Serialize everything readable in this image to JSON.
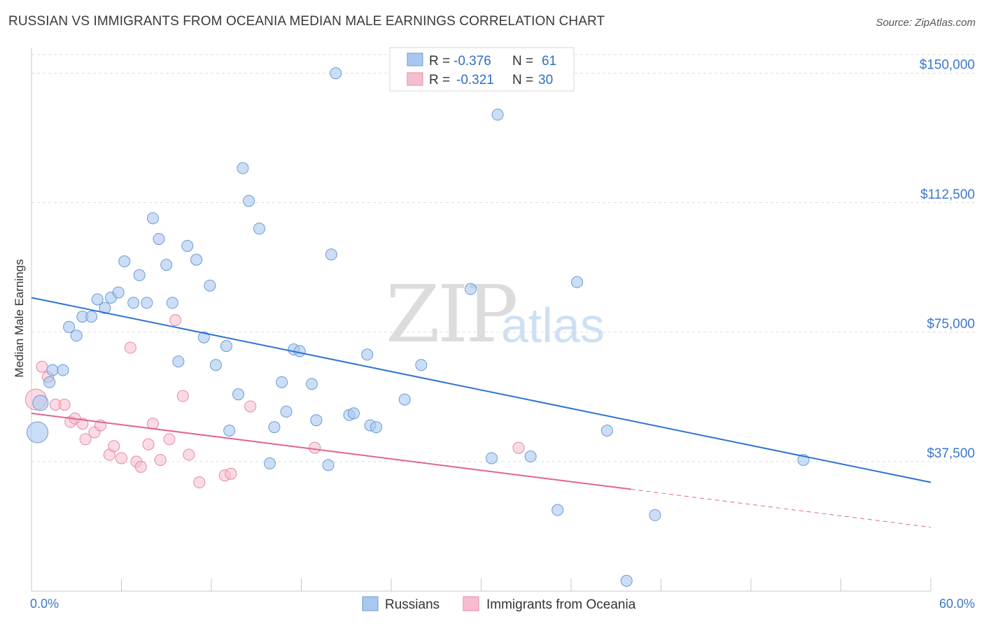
{
  "header": {
    "title": "RUSSIAN VS IMMIGRANTS FROM OCEANIA MEDIAN MALE EARNINGS CORRELATION CHART",
    "source": "Source: ZipAtlas.com"
  },
  "watermark": {
    "zip": "ZIP",
    "atlas": "atlas"
  },
  "colors": {
    "blue_fill": "#a9c8ef",
    "blue_stroke": "#6c9ad6",
    "blue_line": "#2e72d2",
    "pink_fill": "#f6bdd0",
    "pink_stroke": "#e8889f",
    "pink_line": "#e0658f",
    "accent_text": "#3b78c9",
    "grid": "#d8dce3"
  },
  "legend": {
    "rows": [
      {
        "r_label": "R =",
        "r_value": "-0.376",
        "n_label": "N =",
        "n_value": "61"
      },
      {
        "r_label": "R =",
        "r_value": "-0.321",
        "n_label": "N =",
        "n_value": "30"
      }
    ]
  },
  "chart_data": {
    "type": "scatter",
    "title": "RUSSIAN VS IMMIGRANTS FROM OCEANIA MEDIAN MALE EARNINGS CORRELATION CHART",
    "xlabel": "",
    "ylabel": "Median Male Earnings",
    "xlim": [
      0,
      60
    ],
    "ylim": [
      0,
      155000
    ],
    "x_tick_labels": [
      "0.0%",
      "60.0%"
    ],
    "y_ticks": [
      37500,
      75000,
      112500,
      150000
    ],
    "y_tick_labels": [
      "$37,500",
      "$75,000",
      "$112,500",
      "$150,000"
    ],
    "grid": true,
    "legend_position": "top-center",
    "series": [
      {
        "name": "Russians",
        "r": -0.376,
        "n": 61,
        "trend": {
          "x": [
            0,
            60
          ],
          "y": [
            85000,
            31500
          ]
        },
        "points": [
          [
            0.4,
            46000
          ],
          [
            0.6,
            54500
          ],
          [
            1.2,
            60500
          ],
          [
            1.4,
            64000
          ],
          [
            2.1,
            64000
          ],
          [
            2.5,
            76500
          ],
          [
            3.0,
            74000
          ],
          [
            3.4,
            79500
          ],
          [
            4.0,
            79500
          ],
          [
            4.4,
            84500
          ],
          [
            4.9,
            82000
          ],
          [
            5.3,
            85000
          ],
          [
            5.8,
            86500
          ],
          [
            6.2,
            95500
          ],
          [
            6.8,
            83500
          ],
          [
            7.2,
            91500
          ],
          [
            7.7,
            83500
          ],
          [
            8.1,
            108000
          ],
          [
            8.5,
            102000
          ],
          [
            9.0,
            94500
          ],
          [
            9.4,
            83500
          ],
          [
            9.8,
            66500
          ],
          [
            10.4,
            100000
          ],
          [
            11.0,
            96000
          ],
          [
            11.5,
            73500
          ],
          [
            11.9,
            88500
          ],
          [
            12.3,
            65500
          ],
          [
            13.2,
            46500
          ],
          [
            13.0,
            71000
          ],
          [
            13.8,
            57000
          ],
          [
            14.1,
            122500
          ],
          [
            14.5,
            113000
          ],
          [
            15.2,
            105000
          ],
          [
            15.9,
            37000
          ],
          [
            16.2,
            47500
          ],
          [
            16.7,
            60500
          ],
          [
            17.0,
            52000
          ],
          [
            17.5,
            70000
          ],
          [
            17.9,
            69500
          ],
          [
            18.7,
            60000
          ],
          [
            19.0,
            49500
          ],
          [
            19.8,
            36500
          ],
          [
            20.0,
            97500
          ],
          [
            20.3,
            150000
          ],
          [
            21.2,
            51000
          ],
          [
            21.5,
            51500
          ],
          [
            22.4,
            68500
          ],
          [
            22.6,
            48000
          ],
          [
            23.0,
            47500
          ],
          [
            24.9,
            55500
          ],
          [
            26.0,
            65500
          ],
          [
            29.3,
            87500
          ],
          [
            30.7,
            38500
          ],
          [
            31.1,
            138000
          ],
          [
            33.3,
            39000
          ],
          [
            35.1,
            23500
          ],
          [
            36.4,
            89500
          ],
          [
            38.4,
            46500
          ],
          [
            39.7,
            3000
          ],
          [
            41.6,
            22000
          ],
          [
            51.5,
            38000
          ]
        ]
      },
      {
        "name": "Immigrants from Oceania",
        "r": -0.321,
        "n": 30,
        "trend": {
          "x": [
            0,
            40
          ],
          "y": [
            51500,
            29500
          ]
        },
        "trend_dashed": {
          "x": [
            40,
            60
          ],
          "y": [
            29500,
            18500
          ]
        },
        "points": [
          [
            0.3,
            55500
          ],
          [
            0.7,
            65000
          ],
          [
            1.1,
            62000
          ],
          [
            1.6,
            54000
          ],
          [
            2.2,
            54000
          ],
          [
            2.6,
            49000
          ],
          [
            2.9,
            50000
          ],
          [
            3.4,
            48500
          ],
          [
            3.6,
            44000
          ],
          [
            4.2,
            46000
          ],
          [
            4.6,
            48000
          ],
          [
            5.2,
            39500
          ],
          [
            5.5,
            42000
          ],
          [
            6.0,
            38500
          ],
          [
            6.6,
            70500
          ],
          [
            7.0,
            37500
          ],
          [
            7.3,
            36000
          ],
          [
            7.8,
            42500
          ],
          [
            8.1,
            48500
          ],
          [
            8.6,
            38000
          ],
          [
            9.2,
            44000
          ],
          [
            9.6,
            78500
          ],
          [
            10.1,
            56500
          ],
          [
            10.5,
            39500
          ],
          [
            11.2,
            31500
          ],
          [
            12.9,
            33500
          ],
          [
            13.3,
            34000
          ],
          [
            14.6,
            53500
          ],
          [
            18.9,
            41500
          ],
          [
            32.5,
            41500
          ]
        ]
      }
    ]
  },
  "bottom_legend": {
    "items": [
      "Russians",
      "Immigrants from Oceania"
    ]
  }
}
